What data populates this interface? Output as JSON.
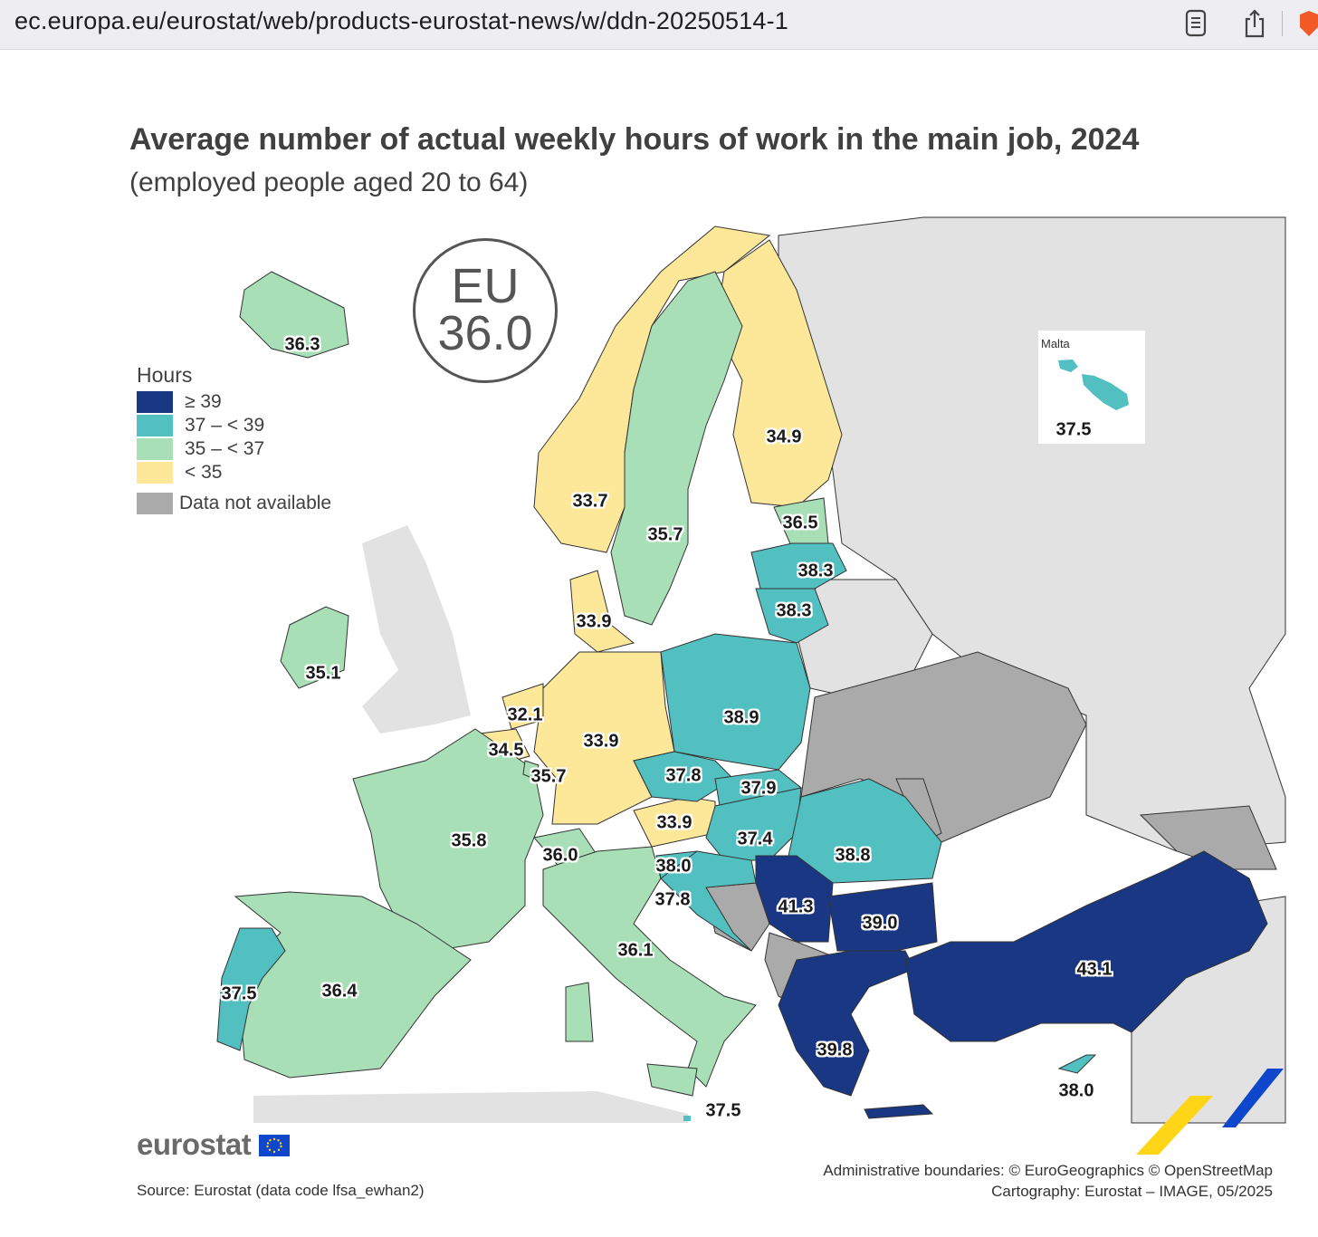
{
  "browser": {
    "url": "ec.europa.eu/eurostat/web/products-eurostat-news/w/ddn-20250514-1"
  },
  "map": {
    "title": "Average number of actual weekly hours of work in the main job, 2024",
    "subtitle": "(employed people aged 20 to 64)",
    "eu_badge": {
      "label": "EU",
      "value": "36.0"
    },
    "legend": {
      "title": "Hours",
      "classes": [
        {
          "label": "≥ 39",
          "color": "#1a3784"
        },
        {
          "label": "37 – < 39",
          "color": "#52bfc0"
        },
        {
          "label": "35 – < 37",
          "color": "#a8dfb6"
        },
        {
          "label": "< 35",
          "color": "#fde89a"
        },
        {
          "label": "Data not available",
          "color": "#aaaaaa"
        }
      ]
    },
    "values": {
      "iceland": "36.3",
      "norway": "33.7",
      "sweden": "35.7",
      "finland": "34.9",
      "estonia": "36.5",
      "latvia": "38.3",
      "lithuania": "38.3",
      "denmark": "33.9",
      "ireland": "35.1",
      "netherlands": "32.1",
      "belgium": "34.5",
      "luxembourg": "35.7",
      "germany": "33.9",
      "poland": "38.9",
      "czechia": "37.8",
      "slovakia": "37.9",
      "austria": "33.9",
      "hungary": "37.4",
      "romania": "38.8",
      "france": "35.8",
      "switzerland": "36.0",
      "slovenia": "38.0",
      "croatia": "37.8",
      "serbia": "41.3",
      "bulgaria": "39.0",
      "italy": "36.1",
      "greece": "39.8",
      "turkiye": "43.1",
      "portugal": "37.5",
      "spain": "36.4",
      "cyprus": "38.0",
      "malta_main": "37.5",
      "malta_inset": "37.5"
    },
    "malta_inset_title": "Malta",
    "colors": {
      "dark_blue": "#1a3784",
      "teal": "#52bfc0",
      "light_green": "#a8dfb6",
      "yellow": "#fde89a",
      "gray": "#aaaaaa",
      "light_gray": "#e2e2e2",
      "sea": "#ffffff"
    }
  },
  "footer": {
    "logo": "eurostat",
    "source": "Source: Eurostat (data code lfsa_ewhan2)",
    "credits_line1": "Administrative boundaries: © EuroGeographics © OpenStreetMap",
    "credits_line2": "Cartography: Eurostat – IMAGE, 05/2025"
  }
}
